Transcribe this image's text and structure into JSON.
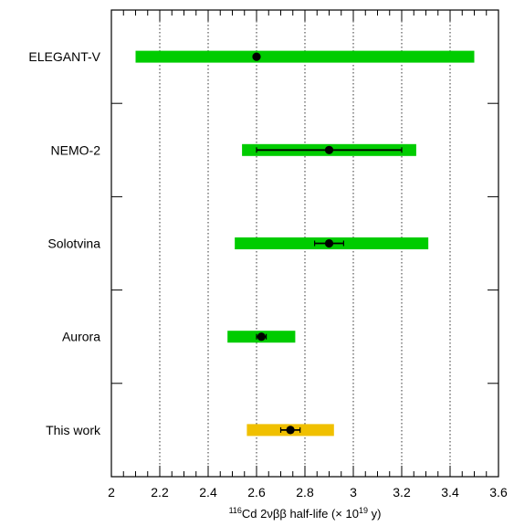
{
  "chart_data": {
    "type": "forest",
    "orientation": "horizontal",
    "categories": [
      "ELEGANT-V",
      "NEMO-2",
      "Solotvina",
      "Aurora",
      "This work"
    ],
    "measurements": [
      {
        "label": "ELEGANT-V",
        "value": 2.6,
        "stat_err": [
          0.0,
          0.0
        ],
        "total_range": [
          2.1,
          3.5
        ],
        "color": "#00cc00"
      },
      {
        "label": "NEMO-2",
        "value": 2.9,
        "stat_err": [
          0.3,
          0.3
        ],
        "total_range": [
          2.54,
          3.26
        ],
        "color": "#00cc00"
      },
      {
        "label": "Solotvina",
        "value": 2.9,
        "stat_err": [
          0.06,
          0.06
        ],
        "total_range": [
          2.51,
          3.31
        ],
        "color": "#00cc00"
      },
      {
        "label": "Aurora",
        "value": 2.62,
        "stat_err": [
          0.02,
          0.02
        ],
        "total_range": [
          2.48,
          2.76
        ],
        "color": "#00cc00"
      },
      {
        "label": "This work",
        "value": 2.74,
        "stat_err": [
          0.04,
          0.04
        ],
        "total_range": [
          2.56,
          2.92
        ],
        "color": "#f0c000"
      }
    ],
    "xlim": [
      2.0,
      3.6
    ],
    "xticks": [
      "2",
      "2.2",
      "2.4",
      "2.6",
      "2.8",
      "3",
      "3.2",
      "3.4",
      "3.6"
    ],
    "xtick_values": [
      2.0,
      2.2,
      2.4,
      2.6,
      2.8,
      3.0,
      3.2,
      3.4,
      3.6
    ],
    "xlabel": {
      "mass_number": "116",
      "main": "Cd 2νββ half-life (× 10",
      "exponent": "19",
      "tail": " y)"
    },
    "grid_x": true,
    "grid_style": "dotted"
  }
}
